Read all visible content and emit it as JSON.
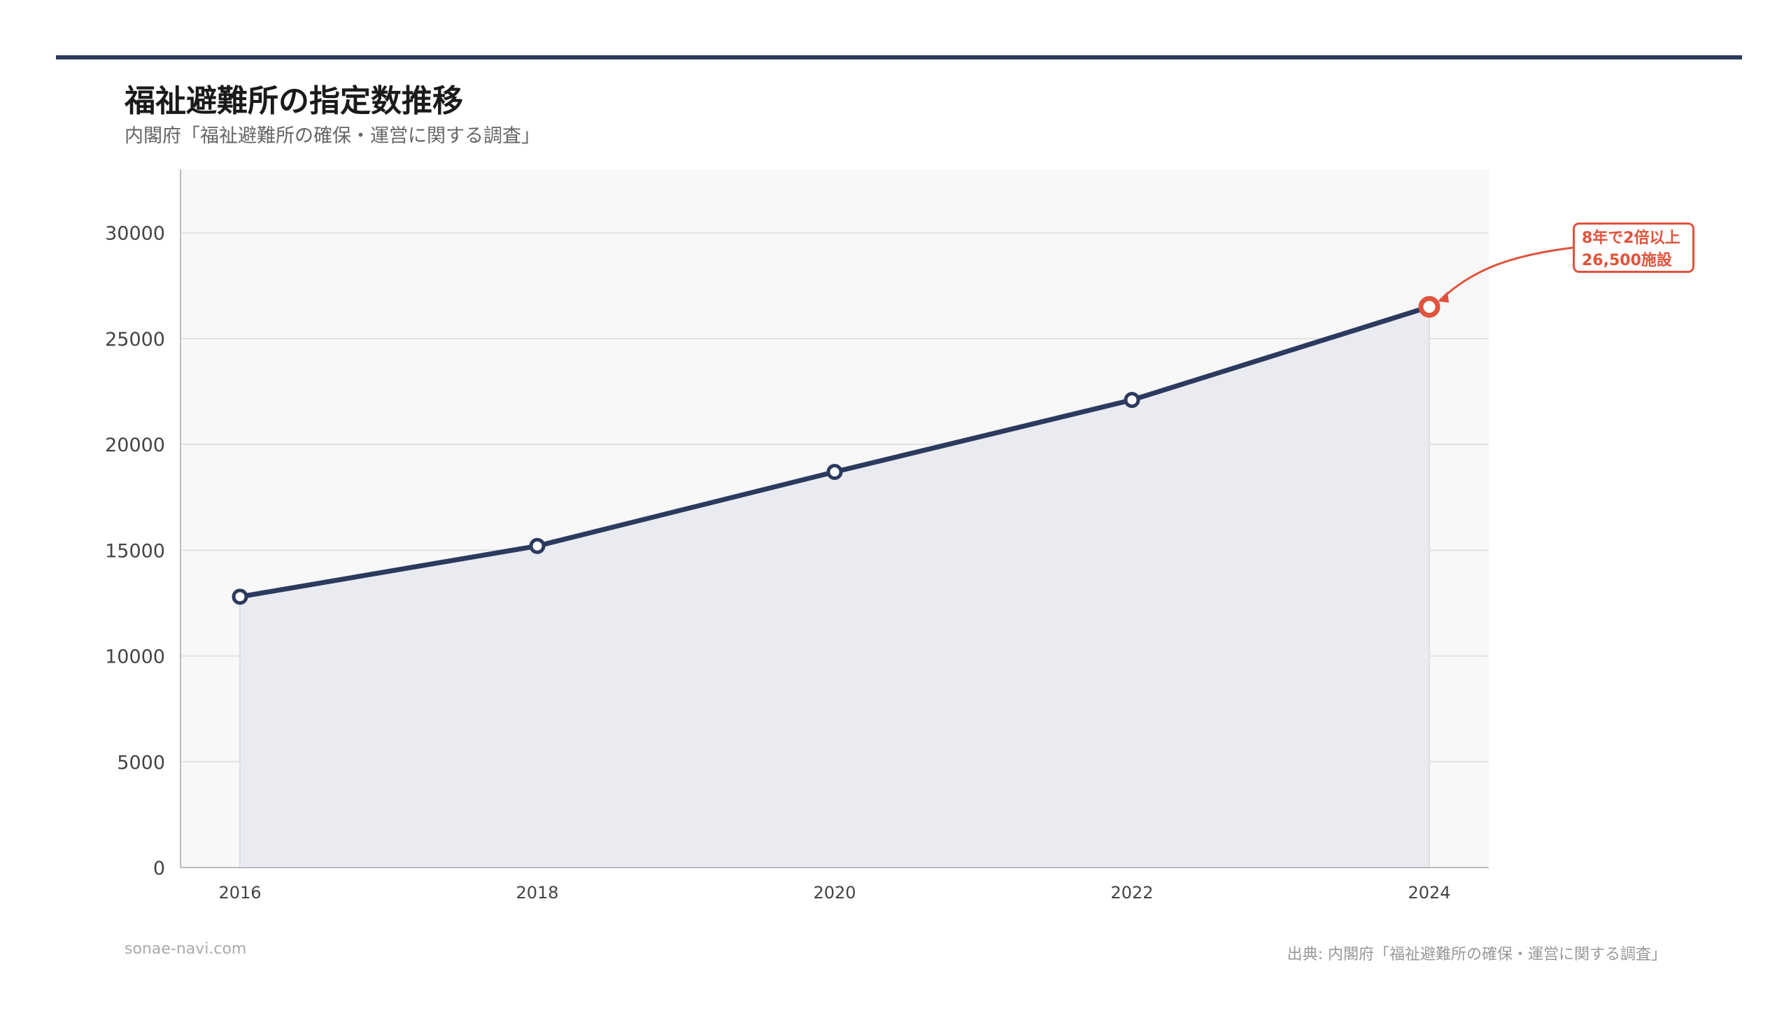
{
  "header": {
    "title": "福祉避難所の指定数推移",
    "subtitle": "内閣府「福祉避難所の確保・運営に関する調査」"
  },
  "footer": {
    "site": "sonae-navi.com",
    "source": "出典: 内閣府「福祉避難所の確保・運営に関する調査」"
  },
  "annotation": {
    "line1": "8年で2倍以上",
    "line2": "26,500施設"
  },
  "colors": {
    "line": "#2b3a5e",
    "highlight": "#e0533c",
    "area": "#e9ebf1",
    "plot_bg": "#f8f8f8"
  },
  "chart_data": {
    "type": "area",
    "x": [
      "2016",
      "2018",
      "2020",
      "2022",
      "2024"
    ],
    "series": [
      {
        "values": [
          12800,
          15200,
          18700,
          22100,
          26500
        ]
      }
    ],
    "ylim": [
      0,
      33000
    ],
    "yticks": [
      0,
      5000,
      10000,
      15000,
      20000,
      25000,
      30000
    ],
    "grid": true,
    "highlight_point": "2024"
  }
}
